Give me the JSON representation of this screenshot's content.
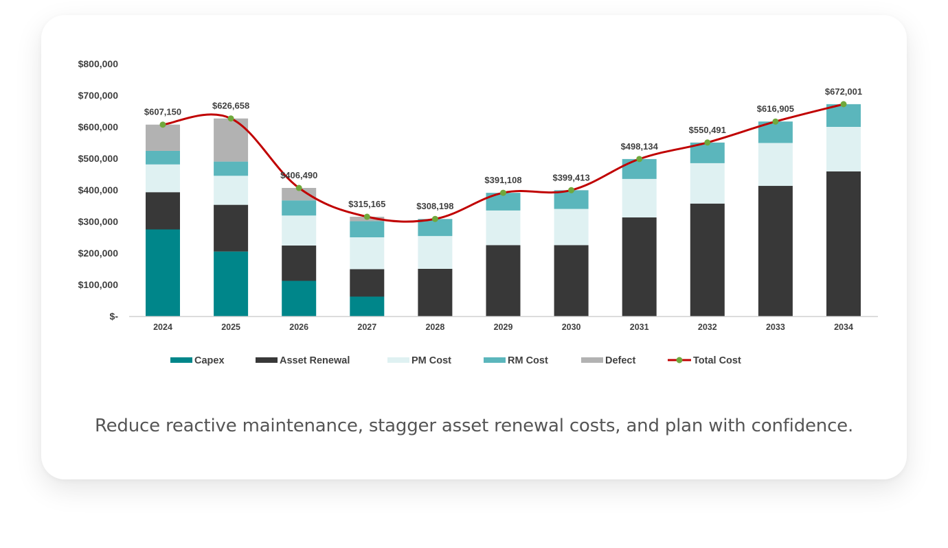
{
  "caption": "Reduce reactive maintenance, stagger asset renewal costs, and plan with confidence.",
  "chart_data": {
    "type": "bar",
    "stacked": true,
    "categories": [
      "2024",
      "2025",
      "2026",
      "2027",
      "2028",
      "2029",
      "2030",
      "2031",
      "2032",
      "2033",
      "2034"
    ],
    "series": [
      {
        "name": "Capex",
        "color": "#00868A",
        "values": [
          275000,
          205000,
          112000,
          62000,
          0,
          0,
          0,
          0,
          0,
          0,
          0
        ]
      },
      {
        "name": "Asset Renewal",
        "color": "#383838",
        "values": [
          118000,
          148000,
          112000,
          87000,
          150000,
          225000,
          225000,
          313000,
          357000,
          413000,
          459000
        ]
      },
      {
        "name": "PM Cost",
        "color": "#DFF1F2",
        "values": [
          88000,
          92000,
          95000,
          101000,
          104000,
          110000,
          115000,
          122000,
          128000,
          136000,
          141000
        ]
      },
      {
        "name": "RM Cost",
        "color": "#5BB6BC",
        "values": [
          43000,
          45000,
          48000,
          51000,
          54000,
          56000,
          59000,
          63000,
          65000,
          68000,
          72000
        ]
      },
      {
        "name": "Defect",
        "color": "#B2B2B2",
        "values": [
          83150,
          136658,
          39490,
          14165,
          198,
          108,
          413,
          134,
          491,
          -95,
          1
        ]
      }
    ],
    "line": {
      "name": "Total Cost",
      "color": "#C00000",
      "marker_color": "#70A83C",
      "values": [
        607150,
        626658,
        406490,
        315165,
        308198,
        391108,
        399413,
        498134,
        550491,
        616905,
        672001
      ]
    },
    "data_labels": [
      "$607,150",
      "$626,658",
      "$406,490",
      "$315,165",
      "$308,198",
      "$391,108",
      "$399,413",
      "$498,134",
      "$550,491",
      "$616,905",
      "$672,001"
    ],
    "ylim": [
      0,
      800000
    ],
    "yticks": [
      0,
      100000,
      200000,
      300000,
      400000,
      500000,
      600000,
      700000,
      800000
    ],
    "ytick_labels": [
      "$-",
      "$100,000",
      "$200,000",
      "$300,000",
      "$400,000",
      "$500,000",
      "$600,000",
      "$700,000",
      "$800,000"
    ],
    "legend_position": "bottom",
    "grid": false
  }
}
